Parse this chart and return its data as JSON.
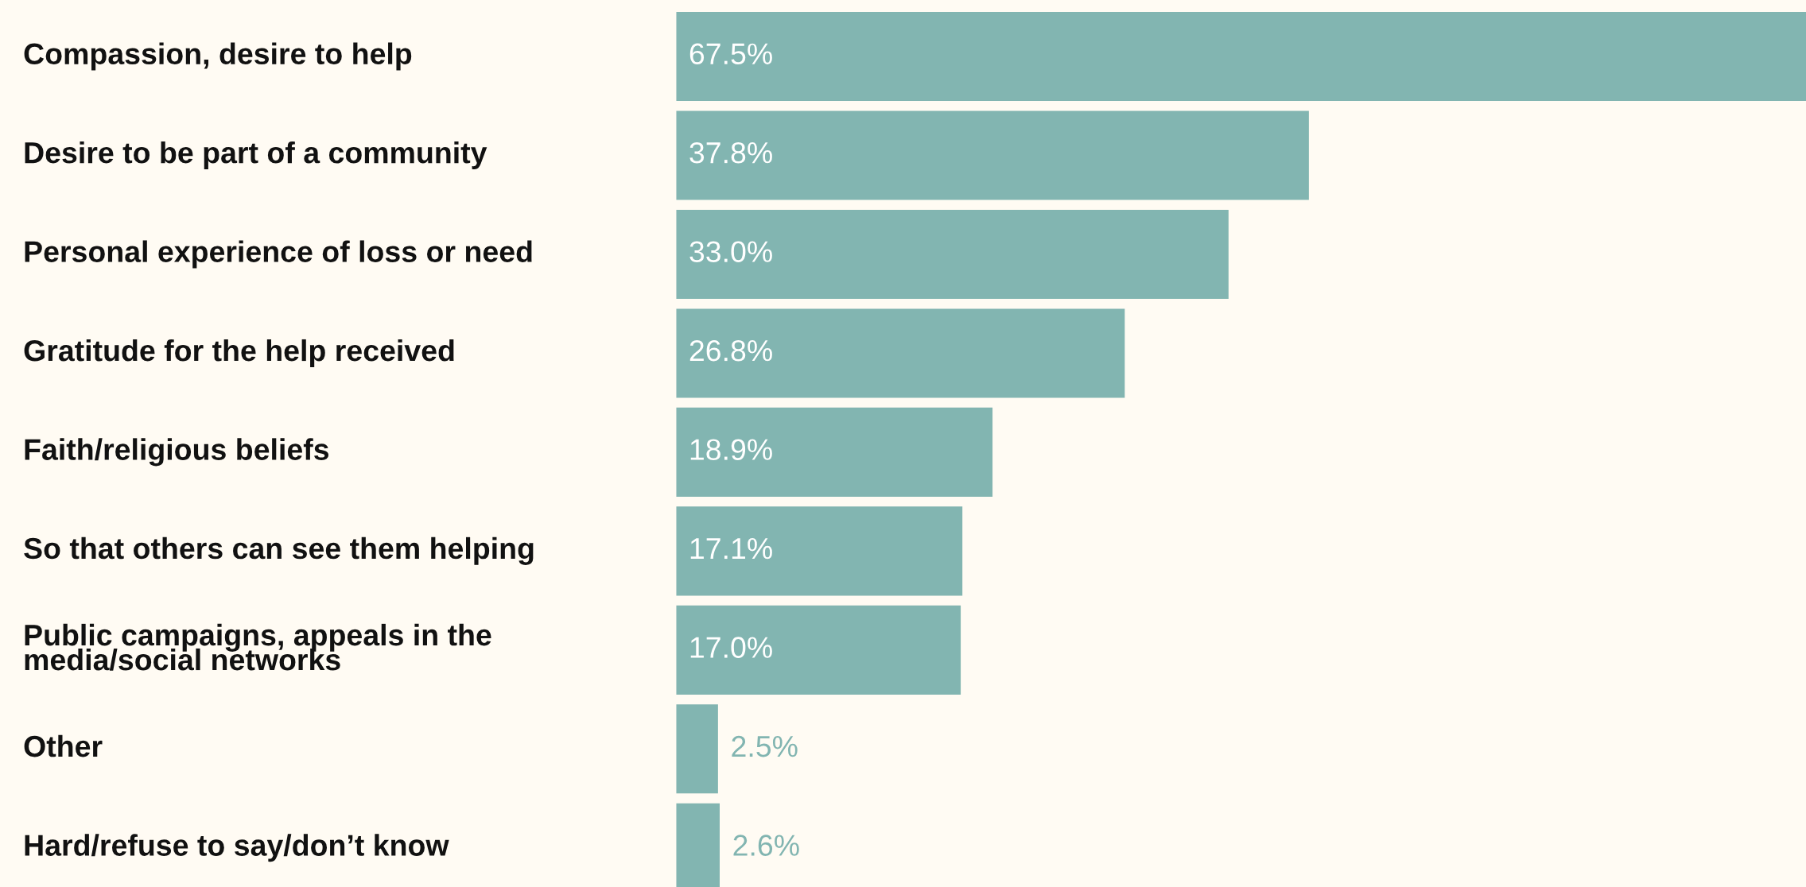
{
  "chart_data": {
    "type": "bar",
    "orientation": "horizontal",
    "categories": [
      "Compassion, desire to help",
      "Desire to be part of a community",
      "Personal experience of loss or need",
      "Gratitude for the help received",
      "Faith/religious beliefs",
      "So that others can see them helping",
      "Public campaigns, appeals in the\nmedia/social networks",
      "Other",
      "Hard/refuse to say/don’t know"
    ],
    "values": [
      67.5,
      37.8,
      33.0,
      26.8,
      18.9,
      17.1,
      17.0,
      2.5,
      2.6
    ],
    "value_labels": [
      "67.5%",
      "37.8%",
      "33.0%",
      "26.8%",
      "18.9%",
      "17.1%",
      "17.0%",
      "2.5%",
      "2.6%"
    ],
    "color": "#82b5b1"
  }
}
